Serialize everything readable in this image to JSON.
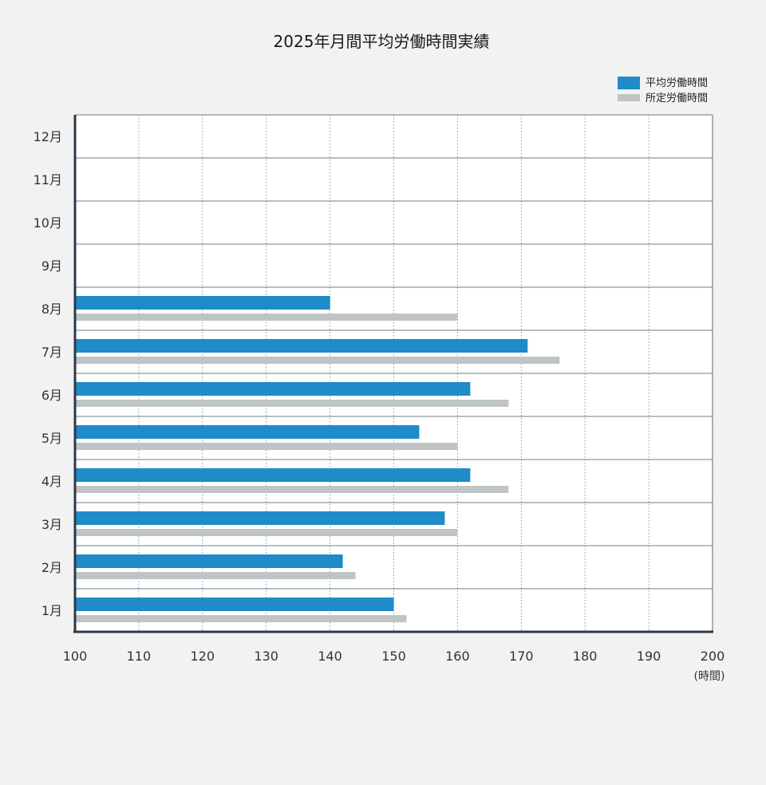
{
  "chart_data": {
    "type": "bar",
    "orientation": "horizontal",
    "title": "2025年月間平均労働時間実績",
    "categories": [
      "1月",
      "2月",
      "3月",
      "4月",
      "5月",
      "6月",
      "7月",
      "8月",
      "9月",
      "10月",
      "11月",
      "12月"
    ],
    "series": [
      {
        "name": "平均労働時間",
        "color": "#1f8bc9",
        "values": [
          150,
          142,
          158,
          162,
          154,
          162,
          171,
          140,
          null,
          null,
          null,
          null
        ]
      },
      {
        "name": "所定労働時間",
        "color": "#bfc4c6",
        "values": [
          152,
          144,
          160,
          168,
          160,
          168,
          176,
          160,
          null,
          null,
          null,
          null
        ]
      }
    ],
    "xlim": [
      100,
      200
    ],
    "xticks": [
      100,
      110,
      120,
      130,
      140,
      150,
      160,
      170,
      180,
      190,
      200
    ],
    "xunit": "(時間)",
    "grid": true,
    "legend_position": "top-right"
  }
}
